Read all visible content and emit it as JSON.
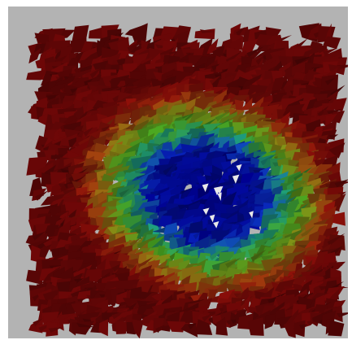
{
  "viewer": {
    "background_color": "#b3b3b3",
    "frame_color": "#ffffff",
    "render": {
      "subject": "3d-surface",
      "style": "shaded jagged mesh",
      "colormap": [
        "#000080",
        "#0a2fb0",
        "#1a8a6a",
        "#3f8f1c",
        "#7a7a12",
        "#8a3a0c",
        "#7a0e08",
        "#5e0606"
      ]
    }
  }
}
